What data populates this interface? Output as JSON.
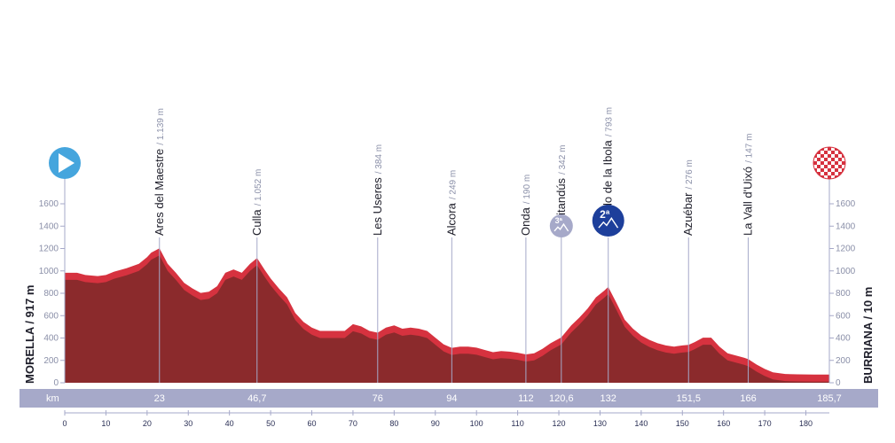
{
  "chart_data": {
    "type": "area",
    "xlabel": "km",
    "ylabel": "",
    "xlim": [
      0,
      185.7
    ],
    "ylim": [
      0,
      1600
    ],
    "yticks": [
      0,
      200,
      400,
      600,
      800,
      1000,
      1200,
      1400,
      1600
    ],
    "xticks": [
      0,
      10,
      20,
      30,
      40,
      50,
      60,
      70,
      80,
      90,
      100,
      110,
      120,
      130,
      140,
      150,
      160,
      170,
      180
    ],
    "start_label": "MORELLA / 917 m",
    "finish_label": "BURRIANA / 10 m",
    "km_unit": "km",
    "waypoints": [
      {
        "name": "Ares del Maestre",
        "altitude": "1.139 m",
        "km": 23,
        "km_label": "23"
      },
      {
        "name": "Culla",
        "altitude": "1.052 m",
        "km": 46.7,
        "km_label": "46,7"
      },
      {
        "name": "Les Useres",
        "altitude": "384 m",
        "km": 76,
        "km_label": "76"
      },
      {
        "name": "Alcora",
        "altitude": "249 m",
        "km": 94,
        "km_label": "94"
      },
      {
        "name": "Onda",
        "altitude": "190 m",
        "km": 112,
        "km_label": "112"
      },
      {
        "name": "Benitandús",
        "altitude": "342 m",
        "km": 120.6,
        "km_label": "120,6",
        "badge": "3ª"
      },
      {
        "name": "Collado de la Ibola",
        "altitude": "793 m",
        "km": 132,
        "km_label": "132",
        "badge": "2ª"
      },
      {
        "name": "Azuébar",
        "altitude": "276 m",
        "km": 151.5,
        "km_label": "151,5"
      },
      {
        "name": "La Vall d'Uixó",
        "altitude": "147 m",
        "km": 166,
        "km_label": "166"
      }
    ],
    "finish_km_label": "185,7",
    "profile": {
      "x": [
        0,
        3,
        5,
        8,
        10,
        12,
        15,
        18,
        20,
        21,
        23,
        25,
        27,
        29,
        31,
        33,
        35,
        37,
        39,
        41,
        43,
        45,
        46.7,
        48.5,
        50,
        52,
        54,
        56,
        58,
        60,
        62,
        64,
        66,
        68,
        70,
        72,
        74,
        76,
        78,
        80,
        82,
        84,
        86,
        88,
        90,
        92,
        94,
        96,
        98,
        100,
        102,
        104,
        106,
        108,
        110,
        112,
        114,
        116,
        118,
        120.6,
        123,
        125,
        127,
        129,
        131,
        132,
        134,
        136,
        138,
        140,
        142,
        144,
        146,
        148,
        150,
        151.5,
        153,
        155,
        157,
        159,
        161,
        163,
        165,
        166,
        168,
        170,
        172,
        175,
        178,
        182,
        185.7
      ],
      "y": [
        920,
        920,
        900,
        890,
        900,
        930,
        960,
        1000,
        1060,
        1100,
        1139,
        1000,
        920,
        830,
        780,
        740,
        750,
        800,
        920,
        950,
        920,
        1000,
        1052,
        950,
        870,
        780,
        700,
        560,
        480,
        430,
        400,
        400,
        400,
        400,
        460,
        440,
        400,
        384,
        430,
        450,
        420,
        430,
        420,
        400,
        340,
        280,
        249,
        260,
        260,
        250,
        230,
        210,
        220,
        215,
        205,
        190,
        200,
        240,
        290,
        342,
        450,
        520,
        600,
        700,
        760,
        793,
        650,
        500,
        420,
        360,
        320,
        290,
        270,
        260,
        270,
        276,
        300,
        340,
        340,
        260,
        200,
        180,
        160,
        147,
        100,
        60,
        30,
        15,
        12,
        10,
        10
      ]
    },
    "colors": {
      "fill": "#8b2a2c",
      "climb": "#d6323f",
      "band": "#a6a9c9",
      "start_marker": "#45a5dd",
      "badge_3": "#a6a9c9",
      "badge_2": "#1d3f9b",
      "checker": "#d6323f"
    }
  },
  "icons": {
    "start": "play-icon",
    "finish": "checkered-flag-icon",
    "category_climb": "mountain-icon"
  }
}
